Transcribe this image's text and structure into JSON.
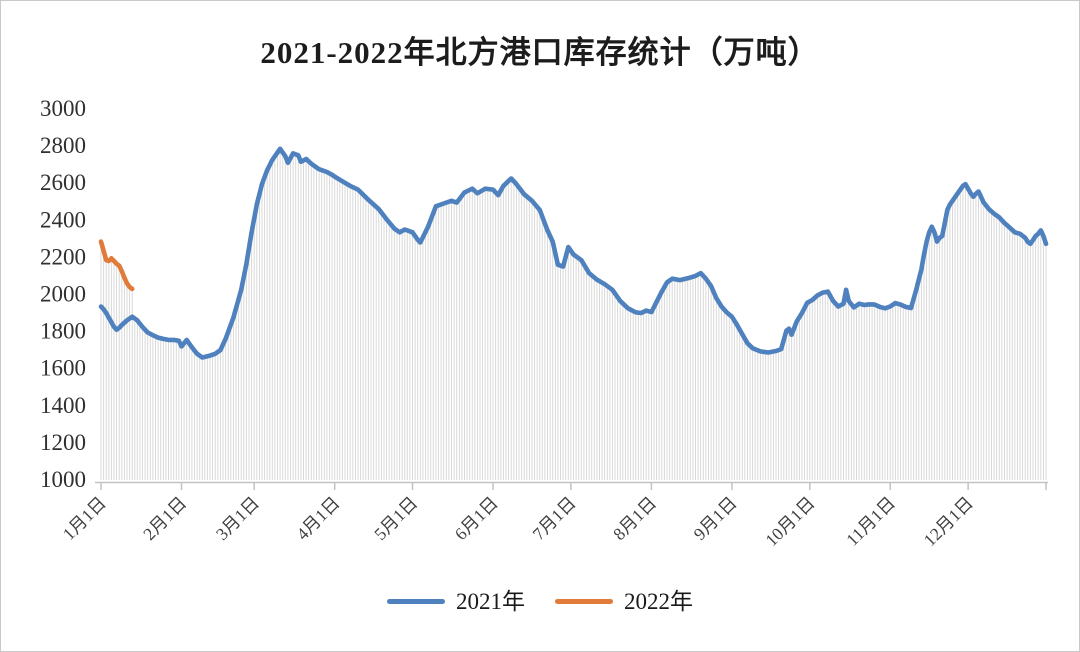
{
  "frame": {
    "border_color": "#c9c9c9",
    "background": "#ffffff"
  },
  "chart": {
    "title": "2021-2022年北方港口库存统计（万吨）",
    "title_color": "#1c1c1c"
  },
  "legend": {
    "position": "bottom",
    "items": [
      {
        "label": "2021年",
        "color": "#4e81bd"
      },
      {
        "label": "2022年",
        "color": "#e07b39"
      }
    ]
  },
  "chart_data": {
    "type": "line",
    "title": "2021-2022年北方港口库存统计（万吨）",
    "unit": "万吨",
    "ylim": [
      1000,
      3000
    ],
    "y_ticks": [
      3000,
      2800,
      2600,
      2400,
      2200,
      2000,
      1800,
      1600,
      1400,
      1200,
      1000
    ],
    "x_axis": {
      "tick_labels": [
        "1月1日",
        "2月1日",
        "3月1日",
        "4月1日",
        "5月1日",
        "6月1日",
        "7月1日",
        "8月1日",
        "9月1日",
        "10月1日",
        "11月1日",
        "12月1日"
      ],
      "tick_days": [
        1,
        32,
        60,
        91,
        121,
        152,
        182,
        213,
        244,
        274,
        305,
        335
      ],
      "end_day": 365
    },
    "grid": "daily vertical drop lines from each point down to the 1000 baseline",
    "drop_line_color": "#d9d9d9",
    "axis_color": "#c2c2c2",
    "tick_label_color": "#404040",
    "y_label_color": "#303030",
    "legend_position": "bottom",
    "series": [
      {
        "name": "2021年",
        "color": "#4e81bd",
        "x_unit": "day_of_year",
        "points": [
          [
            1,
            1930
          ],
          [
            2,
            1915
          ],
          [
            3,
            1895
          ],
          [
            4,
            1870
          ],
          [
            5,
            1845
          ],
          [
            6,
            1820
          ],
          [
            7,
            1805
          ],
          [
            8,
            1815
          ],
          [
            9,
            1830
          ],
          [
            11,
            1855
          ],
          [
            13,
            1875
          ],
          [
            15,
            1855
          ],
          [
            17,
            1820
          ],
          [
            19,
            1790
          ],
          [
            21,
            1775
          ],
          [
            23,
            1762
          ],
          [
            25,
            1755
          ],
          [
            27,
            1750
          ],
          [
            29,
            1750
          ],
          [
            31,
            1745
          ],
          [
            32,
            1715
          ],
          [
            34,
            1750
          ],
          [
            36,
            1710
          ],
          [
            38,
            1675
          ],
          [
            40,
            1655
          ],
          [
            43,
            1665
          ],
          [
            45,
            1675
          ],
          [
            47,
            1695
          ],
          [
            49,
            1755
          ],
          [
            52,
            1870
          ],
          [
            55,
            2020
          ],
          [
            57,
            2160
          ],
          [
            59,
            2330
          ],
          [
            61,
            2480
          ],
          [
            63,
            2590
          ],
          [
            65,
            2665
          ],
          [
            67,
            2720
          ],
          [
            69,
            2760
          ],
          [
            70,
            2780
          ],
          [
            72,
            2740
          ],
          [
            73,
            2705
          ],
          [
            75,
            2755
          ],
          [
            77,
            2745
          ],
          [
            78,
            2710
          ],
          [
            80,
            2725
          ],
          [
            82,
            2700
          ],
          [
            85,
            2670
          ],
          [
            88,
            2655
          ],
          [
            90,
            2640
          ],
          [
            91,
            2630
          ],
          [
            94,
            2605
          ],
          [
            97,
            2580
          ],
          [
            100,
            2560
          ],
          [
            104,
            2505
          ],
          [
            108,
            2455
          ],
          [
            111,
            2400
          ],
          [
            114,
            2350
          ],
          [
            116,
            2330
          ],
          [
            118,
            2345
          ],
          [
            121,
            2330
          ],
          [
            123,
            2290
          ],
          [
            124,
            2275
          ],
          [
            127,
            2360
          ],
          [
            130,
            2470
          ],
          [
            133,
            2485
          ],
          [
            136,
            2500
          ],
          [
            138,
            2490
          ],
          [
            141,
            2545
          ],
          [
            144,
            2565
          ],
          [
            146,
            2540
          ],
          [
            149,
            2565
          ],
          [
            152,
            2560
          ],
          [
            154,
            2530
          ],
          [
            156,
            2580
          ],
          [
            159,
            2620
          ],
          [
            161,
            2590
          ],
          [
            164,
            2535
          ],
          [
            167,
            2500
          ],
          [
            170,
            2450
          ],
          [
            173,
            2340
          ],
          [
            175,
            2280
          ],
          [
            177,
            2155
          ],
          [
            179,
            2145
          ],
          [
            181,
            2250
          ],
          [
            183,
            2210
          ],
          [
            186,
            2180
          ],
          [
            189,
            2110
          ],
          [
            192,
            2075
          ],
          [
            195,
            2050
          ],
          [
            198,
            2020
          ],
          [
            201,
            1960
          ],
          [
            204,
            1920
          ],
          [
            207,
            1898
          ],
          [
            209,
            1895
          ],
          [
            211,
            1908
          ],
          [
            213,
            1900
          ],
          [
            215,
            1955
          ],
          [
            217,
            2010
          ],
          [
            219,
            2060
          ],
          [
            221,
            2080
          ],
          [
            224,
            2072
          ],
          [
            227,
            2082
          ],
          [
            230,
            2095
          ],
          [
            232,
            2110
          ],
          [
            234,
            2080
          ],
          [
            236,
            2040
          ],
          [
            238,
            1975
          ],
          [
            240,
            1930
          ],
          [
            242,
            1898
          ],
          [
            244,
            1875
          ],
          [
            246,
            1830
          ],
          [
            248,
            1780
          ],
          [
            250,
            1732
          ],
          [
            252,
            1705
          ],
          [
            255,
            1688
          ],
          [
            258,
            1682
          ],
          [
            261,
            1690
          ],
          [
            263,
            1700
          ],
          [
            265,
            1800
          ],
          [
            266,
            1810
          ],
          [
            267,
            1778
          ],
          [
            269,
            1850
          ],
          [
            271,
            1895
          ],
          [
            273,
            1950
          ],
          [
            275,
            1965
          ],
          [
            277,
            1990
          ],
          [
            279,
            2005
          ],
          [
            281,
            2010
          ],
          [
            283,
            1960
          ],
          [
            285,
            1930
          ],
          [
            287,
            1945
          ],
          [
            288,
            2020
          ],
          [
            289,
            1960
          ],
          [
            291,
            1925
          ],
          [
            293,
            1945
          ],
          [
            295,
            1938
          ],
          [
            297,
            1942
          ],
          [
            299,
            1940
          ],
          [
            301,
            1928
          ],
          [
            303,
            1920
          ],
          [
            305,
            1930
          ],
          [
            307,
            1948
          ],
          [
            309,
            1940
          ],
          [
            311,
            1928
          ],
          [
            313,
            1922
          ],
          [
            315,
            2020
          ],
          [
            316,
            2075
          ],
          [
            317,
            2130
          ],
          [
            318,
            2210
          ],
          [
            319,
            2280
          ],
          [
            320,
            2330
          ],
          [
            321,
            2360
          ],
          [
            322,
            2330
          ],
          [
            323,
            2280
          ],
          [
            324,
            2300
          ],
          [
            325,
            2310
          ],
          [
            326,
            2380
          ],
          [
            327,
            2450
          ],
          [
            328,
            2480
          ],
          [
            329,
            2500
          ],
          [
            331,
            2540
          ],
          [
            333,
            2580
          ],
          [
            334,
            2590
          ],
          [
            335,
            2565
          ],
          [
            336,
            2540
          ],
          [
            337,
            2522
          ],
          [
            338,
            2538
          ],
          [
            339,
            2550
          ],
          [
            340,
            2520
          ],
          [
            341,
            2490
          ],
          [
            343,
            2455
          ],
          [
            345,
            2430
          ],
          [
            347,
            2410
          ],
          [
            349,
            2380
          ],
          [
            351,
            2355
          ],
          [
            353,
            2330
          ],
          [
            355,
            2322
          ],
          [
            357,
            2300
          ],
          [
            358,
            2278
          ],
          [
            359,
            2268
          ],
          [
            360,
            2288
          ],
          [
            361,
            2310
          ],
          [
            362,
            2322
          ],
          [
            363,
            2340
          ],
          [
            364,
            2310
          ],
          [
            365,
            2268
          ]
        ]
      },
      {
        "name": "2022年",
        "color": "#e07b39",
        "x_unit": "day_of_year",
        "points": [
          [
            1,
            2280
          ],
          [
            2,
            2230
          ],
          [
            3,
            2180
          ],
          [
            4,
            2175
          ],
          [
            5,
            2190
          ],
          [
            6,
            2175
          ],
          [
            7,
            2160
          ],
          [
            8,
            2150
          ],
          [
            9,
            2120
          ],
          [
            10,
            2085
          ],
          [
            11,
            2055
          ],
          [
            12,
            2035
          ],
          [
            13,
            2025
          ]
        ]
      }
    ]
  }
}
